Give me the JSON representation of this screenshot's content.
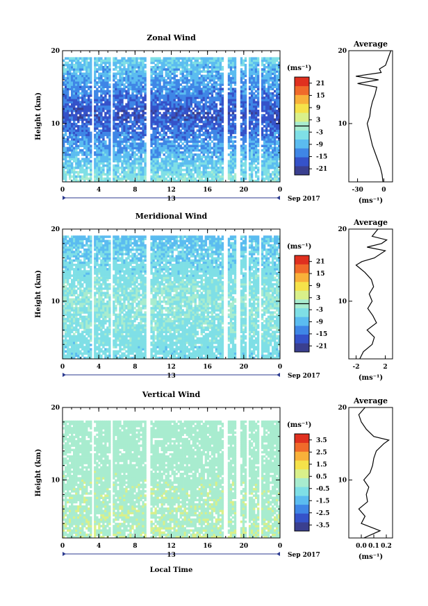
{
  "chart_data": [
    {
      "type": "heatmap",
      "title": "Zonal Wind",
      "ylabel": "Height (km)",
      "ylim": [
        2,
        20
      ],
      "yticks": [
        "20",
        "10"
      ],
      "xlim": [
        0,
        24
      ],
      "xticks": [
        "0",
        "4",
        "8",
        "12",
        "16",
        "20",
        "0"
      ],
      "date_label": "13",
      "date_suffix": "Sep 2017",
      "colorbar": {
        "unit": "(ms⁻¹)",
        "ticks": [
          "21",
          "15",
          "9",
          "3",
          "-3",
          "-9",
          "-15",
          "-21"
        ],
        "range": [
          -24,
          24
        ],
        "zero_line": true
      },
      "average": {
        "title": "Average",
        "xlabel": "(ms⁻¹)",
        "xticks": [
          "-30",
          "0"
        ],
        "xlim": [
          -40,
          10
        ],
        "yticks": [
          "20",
          "10"
        ],
        "height_km": [
          2,
          3,
          4,
          5,
          6,
          7,
          8,
          9,
          10,
          11,
          12,
          13,
          14,
          15,
          15.5,
          16,
          16.5,
          17,
          17.5,
          18,
          19,
          20
        ],
        "values": [
          -1,
          -2,
          -4,
          -7,
          -10,
          -13,
          -15,
          -17,
          -19,
          -16,
          -15,
          -13,
          -10,
          -8,
          -30,
          -6,
          -32,
          -3,
          -5,
          2,
          5,
          8
        ]
      },
      "field": {
        "max_height_km": 19,
        "mid_height_km": 11,
        "mid_value": -18,
        "top_value": -6,
        "bottom_value": -3,
        "scale": 12
      }
    },
    {
      "type": "heatmap",
      "title": "Meridional Wind",
      "ylabel": "Height (km)",
      "ylim": [
        2,
        20
      ],
      "yticks": [
        "20",
        "10"
      ],
      "xlim": [
        0,
        24
      ],
      "xticks": [
        "0",
        "4",
        "8",
        "12",
        "16",
        "20",
        "0"
      ],
      "date_label": "13",
      "date_suffix": "Sep 2017",
      "colorbar": {
        "unit": "(ms⁻¹)",
        "ticks": [
          "21",
          "15",
          "9",
          "3",
          "-3",
          "-9",
          "-15",
          "-21"
        ],
        "range": [
          -24,
          24
        ],
        "zero_line": true
      },
      "average": {
        "title": "Average",
        "xlabel": "(ms⁻¹)",
        "xticks": [
          "-2",
          "2"
        ],
        "xlim": [
          -3,
          3
        ],
        "yticks": [
          "20",
          "10"
        ],
        "height_km": [
          2,
          3,
          4,
          5,
          6,
          7,
          8,
          9,
          10,
          11,
          12,
          13,
          14,
          15,
          15.5,
          16,
          17,
          17.5,
          18,
          18.5,
          19,
          20
        ],
        "values": [
          -1.5,
          -1.0,
          0.2,
          0.5,
          -0.5,
          0.8,
          0.3,
          -0.4,
          0.2,
          -0.2,
          0.4,
          0.1,
          -0.8,
          -2.0,
          -1.2,
          0.5,
          2.0,
          -0.5,
          1.5,
          2.2,
          0.2,
          1.0
        ]
      },
      "field": {
        "max_height_km": 19,
        "mid_height_km": 10,
        "mid_value": -2,
        "top_value": -8,
        "bottom_value": -5,
        "scale": 8
      }
    },
    {
      "type": "heatmap",
      "title": "Vertical Wind",
      "ylabel": "Height (km)",
      "ylim": [
        2,
        20
      ],
      "yticks": [
        "20",
        "10"
      ],
      "xlim": [
        0,
        24
      ],
      "xticks": [
        "0",
        "4",
        "8",
        "12",
        "16",
        "20",
        "0"
      ],
      "date_label": "13",
      "date_suffix": "Sep 2017",
      "xlabel": "Local Time",
      "colorbar": {
        "unit": "(ms⁻¹)",
        "ticks": [
          "3.5",
          "2.5",
          "1.5",
          "0.5",
          "-0.5",
          "-1.5",
          "-2.5",
          "-3.5"
        ],
        "range": [
          -4,
          4
        ],
        "zero_line": false
      },
      "average": {
        "title": "Average",
        "xlabel": "(ms⁻¹)",
        "xticks": [
          "0.0",
          "0.1",
          "0.2"
        ],
        "xlim": [
          -0.1,
          0.25
        ],
        "yticks": [
          "20",
          "10"
        ],
        "height_km": [
          2,
          3,
          4,
          5,
          6,
          7,
          8,
          9,
          10,
          11,
          12,
          13,
          14,
          15,
          15.5,
          16,
          17,
          18,
          19,
          20
        ],
        "values": [
          0.02,
          0.15,
          0.0,
          0.03,
          -0.02,
          0.05,
          0.04,
          0.06,
          0.02,
          0.07,
          0.09,
          0.1,
          0.12,
          0.18,
          0.22,
          0.1,
          0.04,
          0.0,
          -0.02,
          0.03
        ]
      },
      "field": {
        "max_height_km": 18,
        "mid_height_km": 10,
        "mid_value": 0.2,
        "top_value": 0.1,
        "bottom_value": 0.3,
        "scale": 0.6
      }
    }
  ]
}
